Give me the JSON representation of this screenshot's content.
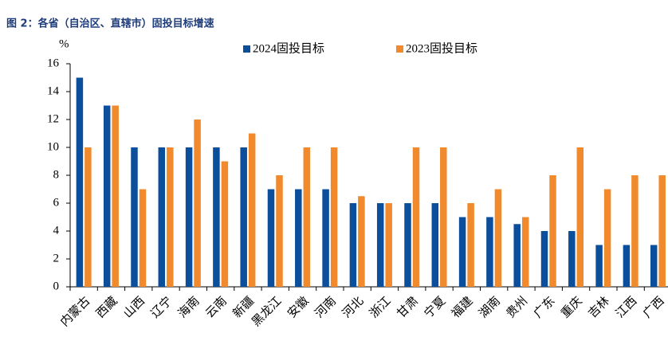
{
  "chart_data": {
    "type": "bar",
    "title": "图 2：各省（自治区、直辖市）固投目标增速",
    "y_label": "%",
    "categories": [
      "内蒙古",
      "西藏",
      "山西",
      "辽宁",
      "海南",
      "云南",
      "新疆",
      "黑龙江",
      "安徽",
      "河南",
      "河北",
      "浙江",
      "甘肃",
      "宁夏",
      "福建",
      "湖南",
      "贵州",
      "广东",
      "重庆",
      "吉林",
      "江西",
      "广西"
    ],
    "series": [
      {
        "name": "2024固投目标",
        "color": "#0b4f9c",
        "values": [
          15,
          13,
          10,
          10,
          10,
          10,
          10,
          7,
          7,
          7,
          6,
          6,
          6,
          6,
          5,
          5,
          4.5,
          4,
          4,
          3,
          3,
          3
        ]
      },
      {
        "name": "2023固投目标",
        "color": "#f08a2c",
        "values": [
          10,
          13,
          7,
          10,
          12,
          9,
          11,
          8,
          10,
          10,
          6.5,
          6,
          10,
          10,
          6,
          7,
          5,
          8,
          10,
          7,
          8,
          8
        ]
      }
    ],
    "ylim": [
      0,
      16
    ],
    "yticks": [
      0,
      2,
      4,
      6,
      8,
      10,
      12,
      14,
      16
    ],
    "legend": "top"
  }
}
